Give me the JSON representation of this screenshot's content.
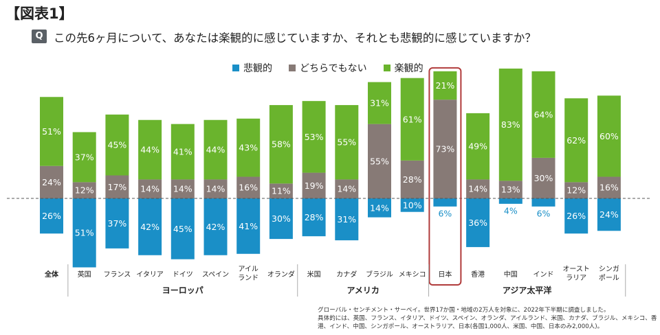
{
  "figure_label": "【図表1】",
  "question": {
    "badge": "Q",
    "text": "この先6ヶ月について、あなたは楽観的に感じていますか、それとも悲観的に感じていますか？"
  },
  "colors": {
    "pessimistic": "#1a8fc7",
    "neutral": "#877a76",
    "optimistic": "#6ab42d",
    "highlight": "#b03a3a",
    "baseline": "#555555"
  },
  "chart_data": {
    "type": "bar",
    "stacked": true,
    "categories": [
      "全体",
      "英国",
      "フランス",
      "イタリア",
      "ドイツ",
      "スペイン",
      "アイル\nランド",
      "オランダ",
      "米国",
      "カナダ",
      "ブラジル",
      "メキシコ",
      "日本",
      "香港",
      "中国",
      "インド",
      "オースト\nラリア",
      "シンガ\nポール"
    ],
    "series": [
      {
        "name": "悲観的",
        "direction": "below-baseline",
        "values": [
          26,
          51,
          37,
          42,
          45,
          42,
          41,
          30,
          28,
          31,
          14,
          10,
          6,
          36,
          4,
          6,
          26,
          24
        ]
      },
      {
        "name": "どちらでもない",
        "direction": "above-baseline",
        "values": [
          24,
          12,
          17,
          14,
          14,
          14,
          16,
          11,
          19,
          14,
          55,
          28,
          73,
          14,
          13,
          30,
          12,
          16
        ]
      },
      {
        "name": "楽観的",
        "direction": "above-baseline",
        "values": [
          51,
          37,
          45,
          44,
          41,
          44,
          43,
          58,
          53,
          55,
          31,
          61,
          21,
          49,
          83,
          64,
          62,
          60
        ]
      }
    ],
    "value_suffix": "%",
    "highlighted_category": "日本",
    "emphasized_category": "全体",
    "groups": [
      {
        "label": "ヨーロッパ",
        "categories": [
          "英国",
          "フランス",
          "イタリア",
          "ドイツ",
          "スペイン",
          "アイル\nランド",
          "オランダ"
        ]
      },
      {
        "label": "アメリカ",
        "categories": [
          "米国",
          "カナダ",
          "ブラジル",
          "メキシコ"
        ]
      },
      {
        "label": "アジア太平洋",
        "categories": [
          "日本",
          "香港",
          "中国",
          "インド",
          "オースト\nラリア",
          "シンガ\nポール"
        ]
      }
    ],
    "legend_position": "top-center",
    "baseline": "dashed"
  },
  "note_lines": [
    "グローバル・センチメント・サーベイ。世界17か国・地域の2万人を対象に、2022年下半期に調査しました。",
    "具体的には、英国、フランス、イタリア、ドイツ、スペイン、オランダ、アイルランド、米国、カナダ、ブラジル、メキシコ、香",
    "港、インド、中国、シンガポール、オーストラリア、日本(各国1,000人、米国、中国、日本のみ2,000人)。"
  ]
}
